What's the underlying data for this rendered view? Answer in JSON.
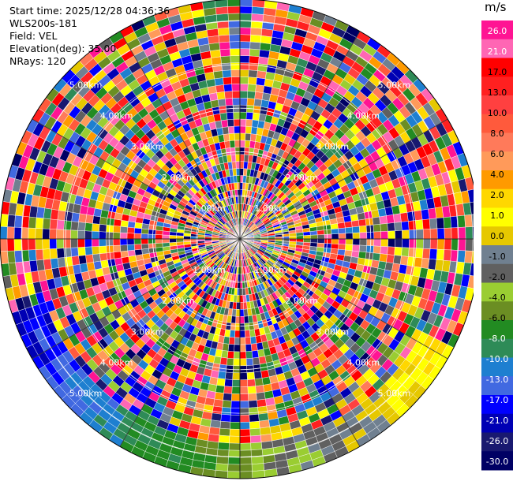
{
  "info": {
    "start_time": "Start time: 2025/12/28 04:36:36",
    "station": "WLS200s-181",
    "field": "Field: VEL",
    "elevation": "Elevation(deg): 35.00",
    "nrays": "NRays: 120"
  },
  "colorbar": {
    "unit": "m/s",
    "ticks": [
      "26.0",
      "21.0",
      "17.0",
      "13.0",
      "10.0",
      "8.0",
      "6.0",
      "4.0",
      "2.0",
      "1.0",
      "0.0",
      "-1.0",
      "-2.0",
      "-4.0",
      "-6.0",
      "-8.0",
      "-10.0",
      "-13.0",
      "-17.0",
      "-21.0",
      "-26.0",
      "-30.0"
    ],
    "colors": [
      "#ff1493",
      "#ff66b4",
      "#ff0000",
      "#ff2020",
      "#ff4040",
      "#ff5a3c",
      "#ff7a5a",
      "#ff9a5a",
      "#ff9a00",
      "#ffd700",
      "#ffff00",
      "#e6c800",
      "#708090",
      "#606060",
      "#9acd32",
      "#6b8e23",
      "#228b22",
      "#2e8b57",
      "#1e7fd0",
      "#4169e1",
      "#0000ff",
      "#0000b4",
      "#191970",
      "#000064"
    ]
  },
  "chart_data": {
    "type": "ppi",
    "field": "VEL",
    "units": "m/s",
    "nrays": 120,
    "elevation_deg": 35.0,
    "range_labels": [
      "1.00km",
      "2.00km",
      "3.00km",
      "4.00km",
      "5.00km"
    ],
    "range_rings_km": [
      1,
      2,
      3,
      4,
      5
    ],
    "max_range_km": 5.5,
    "color_levels": [
      -30,
      -26,
      -21,
      -17,
      -13,
      -10,
      -8,
      -6,
      -4,
      -2,
      -1,
      0,
      1,
      2,
      4,
      6,
      8,
      10,
      13,
      17,
      21,
      26
    ]
  }
}
